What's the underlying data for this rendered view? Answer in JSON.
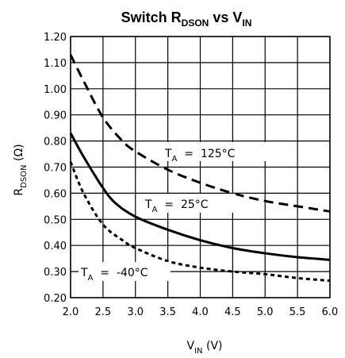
{
  "chart_data": {
    "type": "line",
    "title": {
      "main": "Switch R",
      "sub1": "DSON",
      "mid": " vs V",
      "sub2": "IN"
    },
    "xlabel": {
      "main": "V",
      "sub": "IN",
      "unit": " (V)"
    },
    "ylabel": {
      "main": "R",
      "sub": "DSON",
      "unit": " (Ω)"
    },
    "xlim": [
      2.0,
      6.0
    ],
    "ylim": [
      0.2,
      1.2
    ],
    "xticks": [
      "2.0",
      "2.5",
      "3.0",
      "3.5",
      "4.0",
      "4.5",
      "5.0",
      "5.5",
      "6.0"
    ],
    "yticks": [
      "0.20",
      "0.30",
      "0.40",
      "0.50",
      "0.60",
      "0.70",
      "0.80",
      "0.90",
      "1.00",
      "1.10",
      "1.20"
    ],
    "grid": true,
    "series": [
      {
        "name": {
          "main": "T",
          "sub": "A",
          "rest": "  =  125°C"
        },
        "style": "dashed",
        "x": [
          2.0,
          2.2,
          2.5,
          2.8,
          3.0,
          3.5,
          4.0,
          4.5,
          5.0,
          5.5,
          6.0
        ],
        "y": [
          1.13,
          1.03,
          0.89,
          0.8,
          0.76,
          0.69,
          0.64,
          0.6,
          0.57,
          0.55,
          0.53
        ]
      },
      {
        "name": {
          "main": "T",
          "sub": "A",
          "rest": "  =  25°C"
        },
        "style": "solid",
        "x": [
          2.0,
          2.2,
          2.5,
          2.7,
          3.0,
          3.5,
          4.0,
          4.5,
          5.0,
          5.5,
          6.0
        ],
        "y": [
          0.83,
          0.74,
          0.62,
          0.56,
          0.51,
          0.46,
          0.42,
          0.39,
          0.37,
          0.355,
          0.345
        ]
      },
      {
        "name": {
          "main": "T",
          "sub": "A",
          "rest": "  =  -40°C"
        },
        "style": "dotted",
        "x": [
          2.0,
          2.2,
          2.5,
          2.8,
          3.0,
          3.5,
          4.0,
          4.5,
          5.0,
          5.5,
          6.0
        ],
        "y": [
          0.72,
          0.6,
          0.48,
          0.42,
          0.39,
          0.34,
          0.315,
          0.3,
          0.29,
          0.275,
          0.265
        ]
      }
    ]
  }
}
